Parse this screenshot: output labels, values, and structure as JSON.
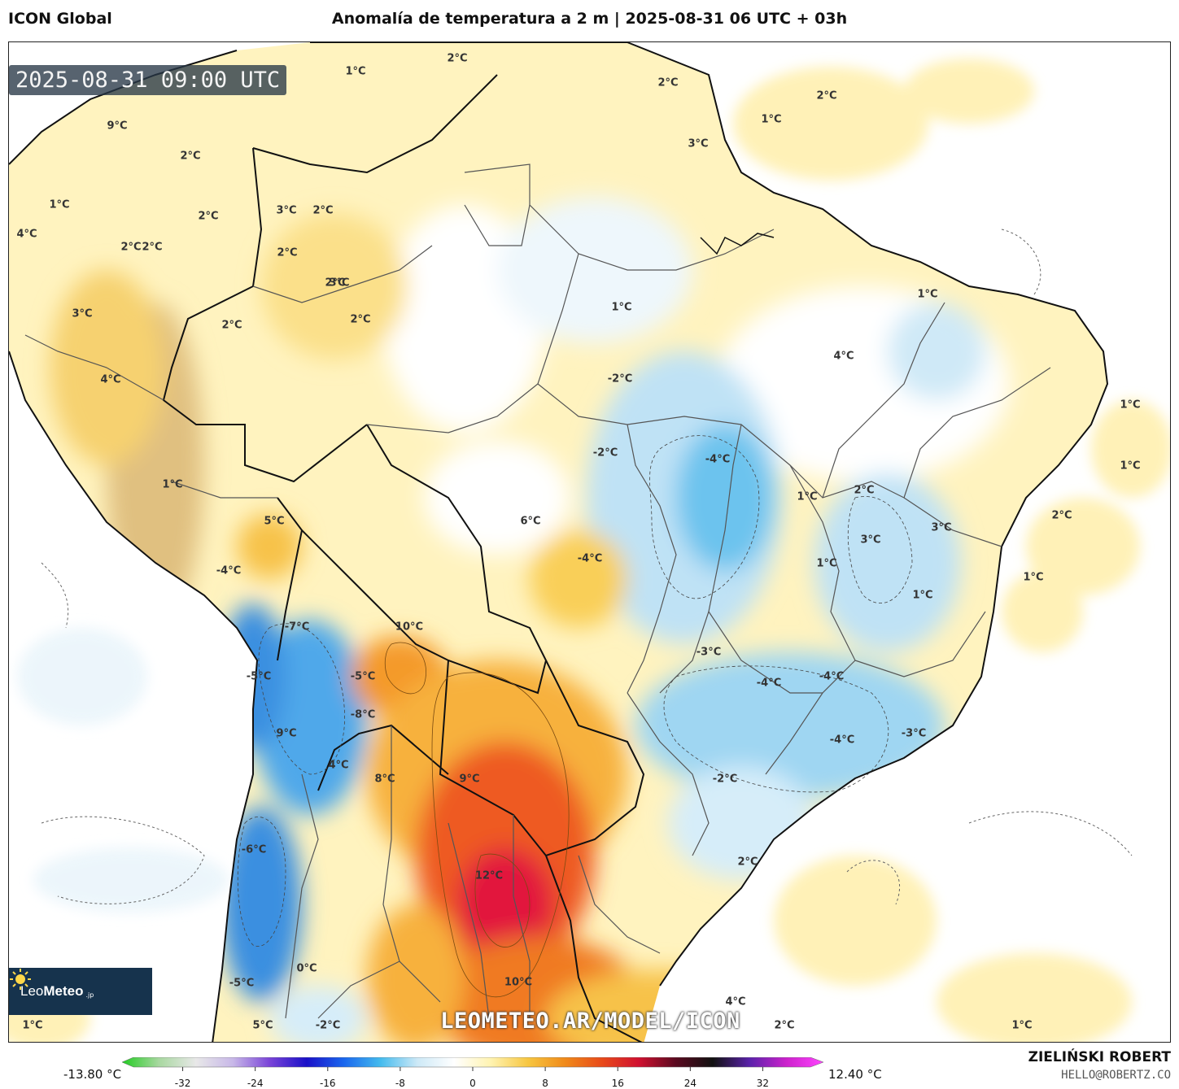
{
  "header": {
    "model": "ICON Global",
    "title": "Anomalía de temperatura a 2 m | 2025-08-31 06 UTC + 03h"
  },
  "map": {
    "valid_time": "2025-08-31 09:00 UTC",
    "watermark": "LEOMETEO.AR/MODEL/ICON",
    "logo": {
      "name_plain": "Leo",
      "name_bold": "Meteo",
      "suffix": ".jp",
      "icon": "sun-icon"
    },
    "labels": [
      {
        "text": "9°C"
      },
      {
        "text": "1°C"
      },
      {
        "text": "4°C"
      },
      {
        "text": "3°C"
      },
      {
        "text": "2°C"
      },
      {
        "text": "4°C"
      },
      {
        "text": "1°C"
      },
      {
        "text": "5°C"
      },
      {
        "text": "-4°C"
      },
      {
        "text": "-7°C"
      },
      {
        "text": "-5°C"
      },
      {
        "text": "9°C"
      },
      {
        "text": "-6°C"
      },
      {
        "text": "-5°C"
      },
      {
        "text": "5°C"
      },
      {
        "text": "1°C"
      },
      {
        "text": "1°C"
      },
      {
        "text": "2°C"
      },
      {
        "text": "2°C"
      },
      {
        "text": "2°C"
      },
      {
        "text": "2°C"
      },
      {
        "text": "3°C"
      },
      {
        "text": "3°C"
      },
      {
        "text": "2°C"
      },
      {
        "text": "2°C"
      },
      {
        "text": "2°C"
      },
      {
        "text": "2°C"
      },
      {
        "text": "2°C"
      },
      {
        "text": "2°C"
      },
      {
        "text": "3°C"
      },
      {
        "text": "2°C"
      },
      {
        "text": "1°C"
      },
      {
        "text": "1°C"
      },
      {
        "text": "4°C"
      },
      {
        "text": "-4°C"
      },
      {
        "text": "1°C"
      },
      {
        "text": "-2°C"
      },
      {
        "text": "-2°C"
      },
      {
        "text": "2°C"
      },
      {
        "text": "6°C"
      },
      {
        "text": "-4°C"
      },
      {
        "text": "3°C"
      },
      {
        "text": "3°C"
      },
      {
        "text": "1°C"
      },
      {
        "text": "2°C"
      },
      {
        "text": "1°C"
      },
      {
        "text": "1°C"
      },
      {
        "text": "1°C"
      },
      {
        "text": "1°C"
      },
      {
        "text": "10°C"
      },
      {
        "text": "-3°C"
      },
      {
        "text": "-4°C"
      },
      {
        "text": "-4°C"
      },
      {
        "text": "-4°C"
      },
      {
        "text": "-3°C"
      },
      {
        "text": "-5°C"
      },
      {
        "text": "-8°C"
      },
      {
        "text": "4°C"
      },
      {
        "text": "8°C"
      },
      {
        "text": "9°C"
      },
      {
        "text": "-2°C"
      },
      {
        "text": "1°C"
      },
      {
        "text": "12°C"
      },
      {
        "text": "2°C"
      },
      {
        "text": "0°C"
      },
      {
        "text": "10°C"
      },
      {
        "text": "4°C"
      },
      {
        "text": "-2°C"
      },
      {
        "text": "2°C"
      },
      {
        "text": "1°C"
      }
    ]
  },
  "colorbar": {
    "min_label": "-13.80 °C",
    "max_label": "12.40 °C",
    "ticks": [
      "-32",
      "-24",
      "-16",
      "-8",
      "0",
      "8",
      "16",
      "24",
      "32"
    ],
    "range": [
      -36,
      36
    ],
    "stops": [
      "#22cc22",
      "#a8d8a0",
      "#e8e8e8",
      "#c8b8e8",
      "#7a44d8",
      "#1a10c8",
      "#1a66ee",
      "#44bbee",
      "#cde9f7",
      "#ffffff",
      "#fff3b0",
      "#f7c640",
      "#f08a1a",
      "#e84a1a",
      "#d01030",
      "#5a0a20",
      "#111111",
      "#5a22aa",
      "#cc22cc",
      "#ff44ff"
    ]
  },
  "credits": {
    "author": "ZIELIŃSKI ROBERT",
    "contact": "HELLO@ROBERTZ.CO"
  }
}
